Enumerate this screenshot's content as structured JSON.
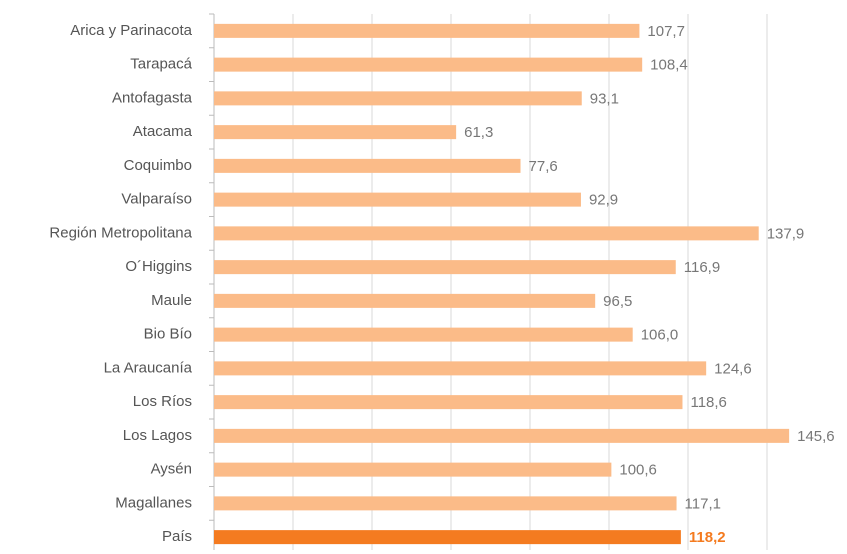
{
  "chart_data": {
    "type": "bar",
    "orientation": "horizontal",
    "categories": [
      "Arica y Parinacota",
      "Tarapacá",
      "Antofagasta",
      "Atacama",
      "Coquimbo",
      "Valparaíso",
      "Región Metropolitana",
      "O´Higgins",
      "Maule",
      "Bio Bío",
      "La Araucanía",
      "Los Ríos",
      "Los Lagos",
      "Aysén",
      "Magallanes",
      "País"
    ],
    "values": [
      107.7,
      108.4,
      93.1,
      61.3,
      77.6,
      92.9,
      137.9,
      116.9,
      96.5,
      106.0,
      124.6,
      118.6,
      145.6,
      100.6,
      117.1,
      118.2
    ],
    "value_labels": [
      "107,7",
      "108,4",
      "93,1",
      "61,3",
      "77,6",
      "92,9",
      "137,9",
      "116,9",
      "96,5",
      "106,0",
      "124,6",
      "118,6",
      "145,6",
      "100,6",
      "117,1",
      "118,2"
    ],
    "colors": [
      "#fbbb88",
      "#fbbb88",
      "#fbbb88",
      "#fbbb88",
      "#fbbb88",
      "#fbbb88",
      "#fbbb88",
      "#fbbb88",
      "#fbbb88",
      "#fbbb88",
      "#fbbb88",
      "#fbbb88",
      "#fbbb88",
      "#fbbb88",
      "#fbbb88",
      "#f47b20"
    ],
    "xlim": [
      0,
      160
    ],
    "xticks": [
      0,
      20,
      40,
      60,
      80,
      100,
      120,
      140
    ],
    "grid": true
  }
}
